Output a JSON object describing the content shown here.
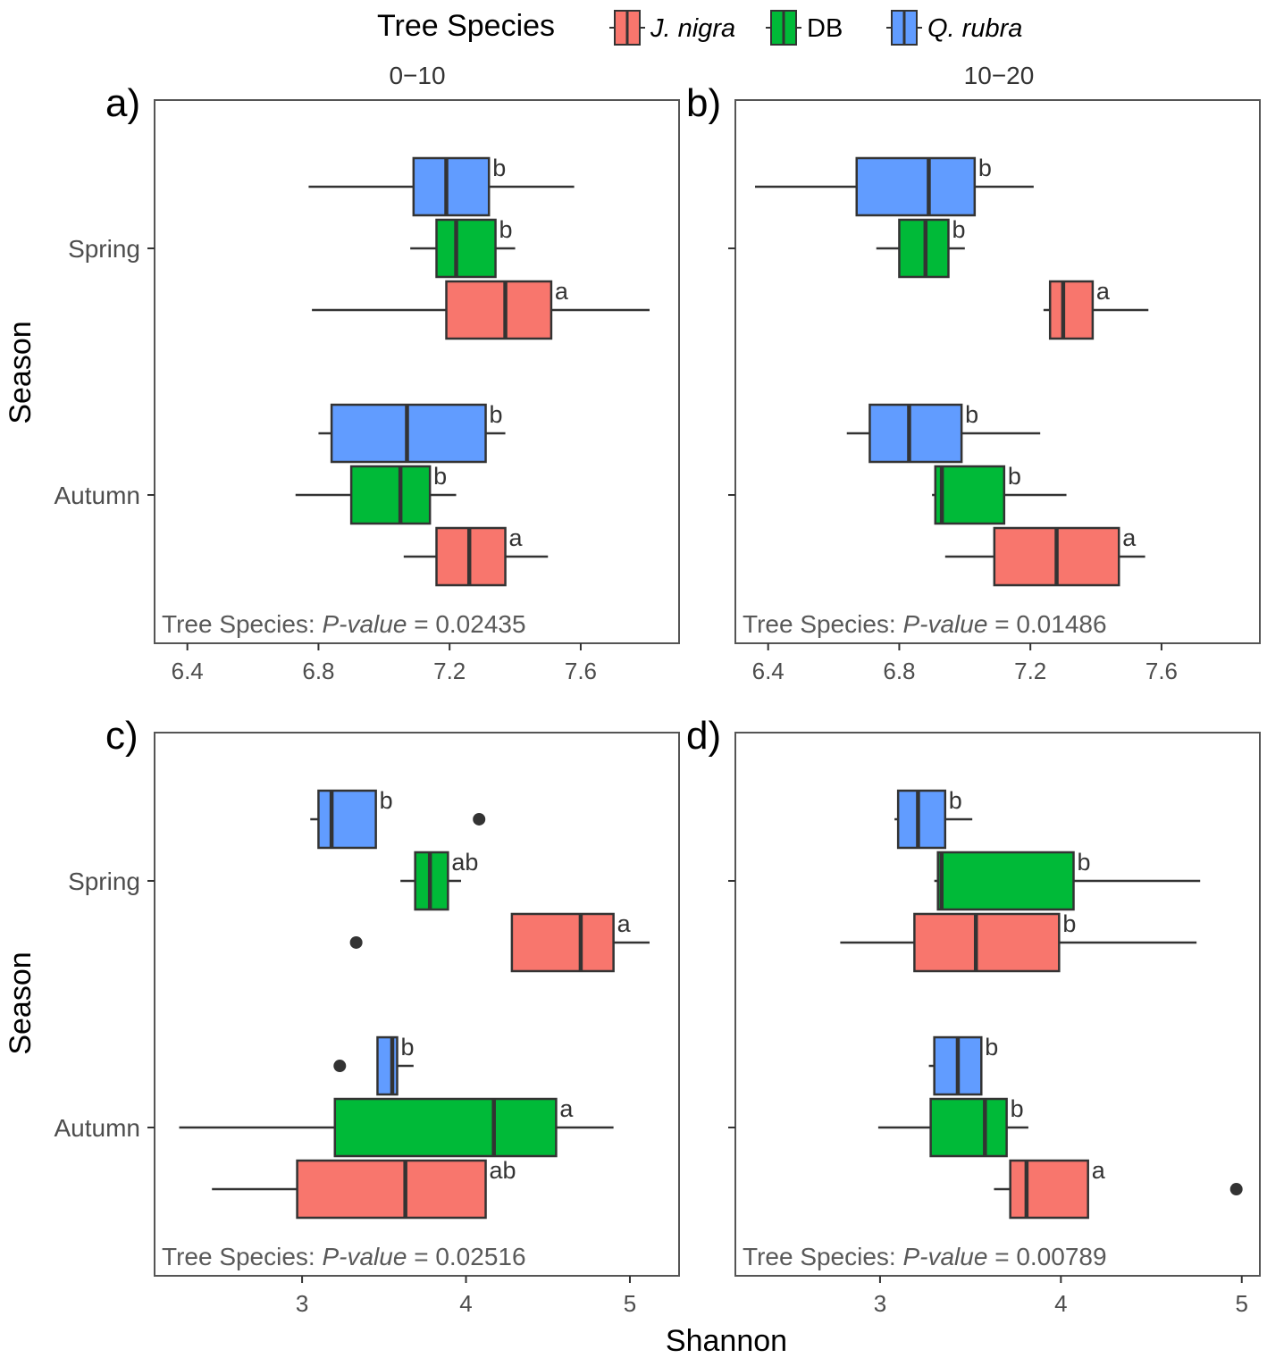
{
  "legend": {
    "title": "Tree Species",
    "entries": [
      {
        "name": "J. nigra",
        "italic": true,
        "color": "#F8766D"
      },
      {
        "name": "DB",
        "italic": false,
        "color": "#00BA38"
      },
      {
        "name": "Q. rubra",
        "italic": true,
        "color": "#619CFF"
      }
    ]
  },
  "facets": {
    "top_left": "0−10",
    "top_right": "10−20"
  },
  "ylabel": "Season",
  "xlabel": "Shannon",
  "chart_data": [
    {
      "type": "boxplot",
      "panel_tag": "a)",
      "categories": [
        "Spring",
        "Autumn"
      ],
      "xlim": [
        6.3,
        7.9
      ],
      "xticks": [
        6.4,
        6.8,
        7.2,
        7.6
      ],
      "tick_labels": [
        "6.4",
        "6.8",
        "7.2",
        "7.6"
      ],
      "annotation": {
        "prefix": "Tree Species: ",
        "italic": "P-value",
        "suffix": " = 0.02435"
      },
      "boxes": [
        {
          "group": "Spring",
          "species": "Q. rubra",
          "min": 6.77,
          "q1": 7.09,
          "median": 7.19,
          "q3": 7.32,
          "max": 7.58,
          "letter": "b",
          "outliers": []
        },
        {
          "group": "Spring",
          "species": "DB",
          "min": 7.08,
          "q1": 7.16,
          "median": 7.22,
          "q3": 7.34,
          "max": 7.4,
          "letter": "b",
          "outliers": []
        },
        {
          "group": "Spring",
          "species": "J. nigra",
          "min": 6.78,
          "q1": 7.19,
          "median": 7.37,
          "q3": 7.51,
          "max": 7.81,
          "letter": "a",
          "outliers": []
        },
        {
          "group": "Autumn",
          "species": "Q. rubra",
          "min": 6.8,
          "q1": 6.84,
          "median": 7.07,
          "q3": 7.31,
          "max": 7.37,
          "letter": "b",
          "outliers": []
        },
        {
          "group": "Autumn",
          "species": "DB",
          "min": 6.73,
          "q1": 6.9,
          "median": 7.05,
          "q3": 7.14,
          "max": 7.22,
          "letter": "b",
          "outliers": []
        },
        {
          "group": "Autumn",
          "species": "J. nigra",
          "min": 7.06,
          "q1": 7.16,
          "median": 7.26,
          "q3": 7.37,
          "max": 7.5,
          "letter": "a",
          "outliers": []
        }
      ]
    },
    {
      "type": "boxplot",
      "panel_tag": "b)",
      "categories": [
        "Spring",
        "Autumn"
      ],
      "xlim": [
        6.3,
        7.9
      ],
      "xticks": [
        6.4,
        6.8,
        7.2,
        7.6
      ],
      "tick_labels": [
        "6.4",
        "6.8",
        "7.2",
        "7.6"
      ],
      "annotation": {
        "prefix": "Tree Species: ",
        "italic": "P-value",
        "suffix": " = 0.01486"
      },
      "boxes": [
        {
          "group": "Spring",
          "species": "Q. rubra",
          "min": 6.36,
          "q1": 6.67,
          "median": 6.89,
          "q3": 7.03,
          "max": 7.21,
          "letter": "b",
          "outliers": []
        },
        {
          "group": "Spring",
          "species": "DB",
          "min": 6.73,
          "q1": 6.8,
          "median": 6.88,
          "q3": 6.95,
          "max": 7.0,
          "letter": "b",
          "outliers": []
        },
        {
          "group": "Spring",
          "species": "J. nigra",
          "min": 7.24,
          "q1": 7.26,
          "median": 7.3,
          "q3": 7.39,
          "max": 7.56,
          "letter": "a",
          "outliers": []
        },
        {
          "group": "Autumn",
          "species": "Q. rubra",
          "min": 6.64,
          "q1": 6.71,
          "median": 6.83,
          "q3": 6.99,
          "max": 7.23,
          "letter": "b",
          "outliers": []
        },
        {
          "group": "Autumn",
          "species": "DB",
          "min": 6.9,
          "q1": 6.91,
          "median": 6.93,
          "q3": 7.12,
          "max": 7.31,
          "letter": "b",
          "outliers": []
        },
        {
          "group": "Autumn",
          "species": "J. nigra",
          "min": 6.94,
          "q1": 7.09,
          "median": 7.28,
          "q3": 7.47,
          "max": 7.55,
          "letter": "a",
          "outliers": []
        }
      ]
    },
    {
      "type": "boxplot",
      "panel_tag": "c)",
      "categories": [
        "Spring",
        "Autumn"
      ],
      "xlim": [
        2.1,
        5.3
      ],
      "xticks": [
        3,
        4,
        5
      ],
      "tick_labels": [
        "3",
        "4",
        "5"
      ],
      "annotation": {
        "prefix": "Tree Species: ",
        "italic": "P-value",
        "suffix": " = 0.02516"
      },
      "boxes": [
        {
          "group": "Spring",
          "species": "Q. rubra",
          "min": 3.05,
          "q1": 3.1,
          "median": 3.18,
          "q3": 3.45,
          "max": 3.45,
          "letter": "b",
          "outliers": [
            4.08
          ]
        },
        {
          "group": "Spring",
          "species": "DB",
          "min": 3.6,
          "q1": 3.69,
          "median": 3.78,
          "q3": 3.89,
          "max": 3.97,
          "letter": "ab",
          "outliers": []
        },
        {
          "group": "Spring",
          "species": "J. nigra",
          "min": 4.28,
          "q1": 4.28,
          "median": 4.7,
          "q3": 4.9,
          "max": 5.12,
          "letter": "a",
          "outliers": [
            3.33
          ]
        },
        {
          "group": "Autumn",
          "species": "Q. rubra",
          "min": 3.46,
          "q1": 3.46,
          "median": 3.55,
          "q3": 3.58,
          "max": 3.68,
          "letter": "b",
          "outliers": [
            3.23
          ]
        },
        {
          "group": "Autumn",
          "species": "DB",
          "min": 2.25,
          "q1": 3.2,
          "median": 4.17,
          "q3": 4.55,
          "max": 4.9,
          "letter": "a",
          "outliers": []
        },
        {
          "group": "Autumn",
          "species": "J. nigra",
          "min": 2.45,
          "q1": 2.97,
          "median": 3.63,
          "q3": 4.12,
          "max": 4.12,
          "letter": "ab",
          "outliers": []
        }
      ]
    },
    {
      "type": "boxplot",
      "panel_tag": "d)",
      "categories": [
        "Spring",
        "Autumn"
      ],
      "xlim": [
        2.2,
        5.1
      ],
      "xticks": [
        3,
        4,
        5
      ],
      "tick_labels": [
        "3",
        "4",
        "5"
      ],
      "annotation": {
        "prefix": "Tree Species: ",
        "italic": "P-value",
        "suffix": " = 0.00789"
      },
      "boxes": [
        {
          "group": "Spring",
          "species": "Q. rubra",
          "min": 3.08,
          "q1": 3.1,
          "median": 3.21,
          "q3": 3.36,
          "max": 3.51,
          "letter": "b",
          "outliers": []
        },
        {
          "group": "Spring",
          "species": "DB",
          "min": 3.3,
          "q1": 3.32,
          "median": 3.34,
          "q3": 4.07,
          "max": 4.77,
          "letter": "b",
          "outliers": []
        },
        {
          "group": "Spring",
          "species": "J. nigra",
          "min": 2.78,
          "q1": 3.19,
          "median": 3.53,
          "q3": 3.99,
          "max": 4.75,
          "letter": "b",
          "outliers": []
        },
        {
          "group": "Autumn",
          "species": "Q. rubra",
          "min": 3.27,
          "q1": 3.3,
          "median": 3.43,
          "q3": 3.56,
          "max": 3.56,
          "letter": "b",
          "outliers": []
        },
        {
          "group": "Autumn",
          "species": "DB",
          "min": 2.99,
          "q1": 3.28,
          "median": 3.58,
          "q3": 3.7,
          "max": 3.82,
          "letter": "b",
          "outliers": []
        },
        {
          "group": "Autumn",
          "species": "J. nigra",
          "min": 3.63,
          "q1": 3.72,
          "median": 3.81,
          "q3": 4.15,
          "max": 4.15,
          "letter": "a",
          "outliers": [
            4.97
          ]
        }
      ]
    }
  ]
}
